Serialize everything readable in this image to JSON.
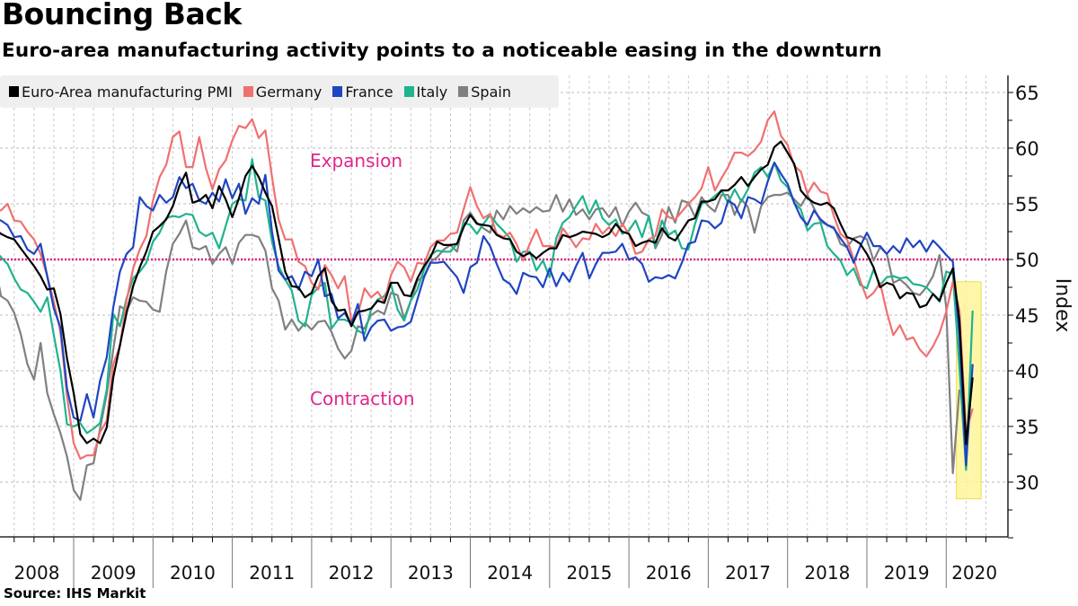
{
  "header": {
    "title": "Bouncing Back",
    "subtitle": "Euro-area manufacturing activity points to a noticeable easing in the downturn"
  },
  "footer": {
    "source": "Source: IHS Markit"
  },
  "chart_data": {
    "type": "line",
    "title": "Bouncing Back",
    "subtitle": "Euro-area manufacturing activity points to a noticeable easing in the downturn",
    "xlabel": "",
    "ylabel": "Index",
    "ylim": [
      25,
      66
    ],
    "yticks": [
      30,
      35,
      40,
      45,
      50,
      55,
      60,
      65
    ],
    "x_start": "2008-01",
    "x_end": "2020-05",
    "x_frequency": "monthly",
    "year_labels": [
      "2008",
      "2009",
      "2010",
      "2011",
      "2012",
      "2013",
      "2014",
      "2015",
      "2016",
      "2017",
      "2018",
      "2019",
      "2020"
    ],
    "grid": true,
    "legend_position": "top-left",
    "reference_line": {
      "value": 50,
      "color": "#e0278a",
      "style": "dotted"
    },
    "annotations": [
      {
        "text": "Expansion",
        "x": "2011-02",
        "y": 59,
        "color": "#e0278a"
      },
      {
        "text": "Contraction",
        "x": "2011-02",
        "y": 37.5,
        "color": "#e0278a"
      }
    ],
    "highlight": {
      "x_from": "2020-02",
      "x_to": "2020-06",
      "y_from": 28.5,
      "y_to": 48,
      "color": "#fff59a"
    },
    "series": [
      {
        "name": "Euro-Area manufacturing PMI",
        "color": "#000000",
        "values": [
          52.8,
          52.3,
          52.0,
          51.8,
          51.0,
          50.2,
          49.4,
          48.5,
          47.3,
          47.4,
          45.1,
          41.1,
          38.0,
          34.3,
          33.5,
          33.9,
          33.5,
          34.9,
          39.4,
          42.3,
          45.2,
          47.6,
          49.3,
          50.7,
          52.5,
          53.0,
          53.6,
          54.8,
          56.6,
          57.8,
          55.1,
          55.3,
          55.8,
          54.6,
          56.6,
          55.4,
          53.8,
          55.5,
          57.5,
          58.4,
          57.4,
          56.0,
          54.8,
          51.9,
          48.9,
          47.6,
          47.5,
          46.6,
          47.0,
          48.5,
          49.2,
          46.3,
          45.4,
          45.5,
          44.0,
          45.3,
          45.4,
          45.6,
          46.3,
          46.1,
          47.9,
          47.9,
          46.8,
          46.7,
          48.3,
          49.4,
          50.2,
          51.6,
          51.3,
          51.3,
          51.4,
          52.9,
          54.0,
          53.2,
          53.1,
          53.0,
          52.2,
          51.9,
          51.8,
          50.7,
          50.3,
          50.6,
          50.1,
          50.6,
          51.0,
          51.0,
          52.2,
          52.0,
          52.2,
          52.5,
          52.4,
          52.3,
          52.0,
          52.3,
          53.2,
          52.5,
          52.3,
          51.2,
          51.5,
          51.7,
          51.5,
          52.8,
          52.0,
          51.7,
          52.6,
          53.5,
          53.7,
          55.2,
          55.2,
          55.4,
          56.2,
          56.2,
          56.7,
          57.4,
          56.6,
          57.4,
          58.1,
          58.5,
          60.1,
          60.6,
          59.6,
          58.6,
          56.2,
          55.5,
          55.1,
          54.9,
          55.1,
          54.6,
          53.2,
          52.0,
          51.8,
          51.4,
          50.5,
          49.3,
          47.5,
          47.9,
          47.7,
          46.5,
          47.0,
          46.9,
          45.7,
          45.9,
          46.9,
          46.3,
          47.9,
          49.2,
          44.5,
          33.4,
          39.4
        ]
      },
      {
        "name": "Germany",
        "color": "#f07070",
        "values": [
          54.5,
          54.4,
          55.0,
          53.5,
          53.4,
          52.5,
          51.8,
          50.5,
          48.5,
          46.2,
          43.5,
          37.7,
          33.5,
          32.1,
          32.4,
          32.4,
          34.5,
          35.5,
          40.6,
          42.2,
          46.3,
          49.2,
          50.9,
          52.1,
          55.3,
          57.4,
          58.5,
          61.0,
          61.5,
          58.3,
          58.3,
          61.0,
          58.2,
          56.3,
          58.1,
          58.9,
          60.7,
          62.0,
          61.8,
          62.6,
          60.9,
          61.6,
          57.4,
          53.6,
          51.8,
          51.8,
          49.8,
          49.4,
          47.9,
          47.3,
          49.5,
          48.6,
          47.4,
          48.5,
          44.5,
          45.1,
          47.4,
          46.6,
          47.1,
          46.2,
          48.6,
          49.8,
          49.3,
          48.0,
          49.7,
          49.6,
          51.1,
          51.7,
          51.7,
          52.3,
          52.4,
          54.5,
          56.5,
          54.8,
          53.7,
          54.1,
          52.3,
          52.0,
          52.4,
          51.4,
          49.9,
          51.4,
          52.7,
          51.2,
          51.2,
          51.1,
          52.8,
          52.0,
          51.1,
          51.9,
          51.8,
          53.2,
          52.3,
          52.9,
          52.1,
          53.2,
          52.3,
          50.5,
          50.7,
          51.8,
          52.1,
          54.5,
          53.8,
          53.6,
          54.3,
          55.0,
          55.6,
          56.4,
          58.3,
          56.2,
          57.3,
          58.3,
          59.6,
          59.6,
          59.3,
          59.8,
          60.6,
          62.5,
          63.3,
          61.1,
          60.3,
          58.4,
          57.9,
          55.9,
          56.9,
          56.1,
          55.9,
          53.9,
          52.3,
          51.8,
          50.0,
          48.1,
          46.5,
          47.0,
          47.9,
          45.3,
          43.2,
          44.1,
          42.8,
          43.0,
          41.9,
          41.3,
          42.2,
          43.4,
          45.3,
          48.0,
          45.4,
          34.5,
          36.6
        ]
      },
      {
        "name": "France",
        "color": "#1f45c2",
        "values": [
          53.6,
          53.5,
          53.1,
          52.0,
          52.1,
          50.9,
          50.5,
          51.4,
          48.5,
          45.6,
          43.9,
          38.4,
          35.8,
          35.5,
          37.9,
          35.8,
          39.1,
          41.2,
          45.7,
          48.9,
          50.5,
          51.1,
          55.6,
          54.8,
          54.4,
          55.8,
          55.1,
          55.6,
          57.4,
          56.4,
          56.8,
          55.3,
          55.0,
          56.0,
          55.2,
          57.2,
          55.5,
          56.8,
          54.1,
          55.5,
          55.0,
          57.6,
          52.5,
          49.0,
          48.2,
          48.5,
          47.3,
          48.9,
          48.5,
          50.0,
          46.7,
          46.9,
          44.7,
          45.2,
          44.2,
          46.0,
          42.7,
          43.9,
          44.5,
          44.6,
          43.6,
          43.9,
          44.0,
          44.4,
          46.4,
          48.4,
          49.7,
          49.7,
          49.8,
          49.1,
          48.4,
          47.0,
          49.3,
          49.7,
          52.1,
          51.2,
          49.6,
          48.2,
          47.8,
          46.9,
          48.8,
          48.5,
          48.4,
          47.5,
          49.2,
          47.6,
          48.8,
          48.0,
          49.4,
          50.6,
          48.3,
          49.6,
          50.6,
          50.6,
          50.7,
          51.4,
          50.0,
          50.2,
          49.6,
          48.0,
          48.4,
          48.3,
          48.6,
          48.3,
          49.7,
          51.4,
          51.6,
          53.5,
          53.4,
          52.8,
          53.3,
          55.3,
          54.9,
          53.7,
          55.6,
          55.4,
          55.0,
          57.0,
          58.7,
          57.7,
          56.8,
          55.1,
          53.8,
          53.1,
          54.4,
          53.6,
          53.1,
          52.8,
          51.9,
          51.1,
          49.7,
          51.2,
          52.4,
          51.2,
          51.2,
          50.5,
          51.2,
          50.6,
          51.9,
          51.1,
          51.7,
          50.7,
          51.7,
          51.1,
          50.4,
          49.8,
          43.2,
          31.5,
          40.6
        ]
      },
      {
        "name": "Italy",
        "color": "#1fb38e",
        "values": [
          50.9,
          50.2,
          49.6,
          48.3,
          47.3,
          47.0,
          46.2,
          45.3,
          46.6,
          43.2,
          40.0,
          35.2,
          35.0,
          35.3,
          34.4,
          34.8,
          35.3,
          38.3,
          45.1,
          44.0,
          46.5,
          48.3,
          48.9,
          49.7,
          51.6,
          52.4,
          53.7,
          53.9,
          53.8,
          54.1,
          54.0,
          52.5,
          52.1,
          52.4,
          51.0,
          53.0,
          55.0,
          55.4,
          55.3,
          59.0,
          55.6,
          55.3,
          51.6,
          49.4,
          48.2,
          47.2,
          44.5,
          44.0,
          46.8,
          47.5,
          47.9,
          43.8,
          44.6,
          44.6,
          44.3,
          43.6,
          43.3,
          45.5,
          46.4,
          46.7,
          47.8,
          45.5,
          44.5,
          46.3,
          47.3,
          49.1,
          50.4,
          50.8,
          50.7,
          50.7,
          51.4,
          53.3,
          53.1,
          52.3,
          53.2,
          54.0,
          53.2,
          52.6,
          51.9,
          49.8,
          50.7,
          50.7,
          49.0,
          49.9,
          48.4,
          51.9,
          53.3,
          53.8,
          54.8,
          55.7,
          54.1,
          55.3,
          53.7,
          53.1,
          53.6,
          52.3,
          52.6,
          53.5,
          52.0,
          53.9,
          51.2,
          53.5,
          52.2,
          52.6,
          51.0,
          50.9,
          53.2,
          55.0,
          55.2,
          55.7,
          56.2,
          55.1,
          56.3,
          55.2,
          56.3,
          57.8,
          58.3,
          57.4,
          58.7,
          57.1,
          56.5,
          55.1,
          54.5,
          52.6,
          53.2,
          53.3,
          51.2,
          50.5,
          49.9,
          48.6,
          49.2,
          47.7,
          47.4,
          49.1,
          47.7,
          48.4,
          48.5,
          48.3,
          48.4,
          47.8,
          47.7,
          47.5,
          46.9,
          46.2,
          48.9,
          48.7,
          40.3,
          31.1,
          45.4
        ]
      },
      {
        "name": "Spain",
        "color": "#808080",
        "values": [
          49.9,
          46.7,
          46.3,
          45.2,
          43.3,
          40.6,
          39.2,
          42.5,
          38.0,
          36.1,
          34.4,
          32.3,
          29.3,
          28.4,
          31.5,
          31.7,
          34.8,
          37.9,
          41.9,
          45.8,
          45.4,
          46.6,
          46.3,
          46.2,
          45.5,
          45.3,
          48.9,
          51.4,
          52.3,
          53.5,
          51.1,
          50.9,
          51.2,
          49.6,
          50.5,
          51.1,
          49.6,
          51.5,
          52.2,
          52.2,
          52.0,
          50.8,
          47.4,
          46.3,
          43.7,
          44.6,
          43.6,
          44.3,
          43.7,
          44.4,
          44.5,
          43.5,
          42.0,
          41.1,
          41.8,
          44.0,
          43.8,
          45.0,
          45.4,
          45.1,
          47.0,
          46.8,
          44.7,
          46.3,
          48.1,
          48.5,
          49.8,
          50.2,
          50.9,
          51.3,
          50.7,
          53.5,
          54.2,
          53.3,
          52.8,
          52.4,
          54.4,
          53.6,
          54.8,
          54.1,
          54.6,
          54.2,
          54.7,
          54.3,
          54.4,
          55.8,
          54.3,
          55.4,
          54.0,
          54.5,
          53.6,
          54.5,
          54.6,
          53.8,
          54.7,
          53.0,
          54.3,
          55.1,
          54.2,
          53.9,
          51.0,
          52.2,
          54.7,
          53.3,
          55.3,
          55.1,
          53.8,
          55.6,
          54.8,
          54.3,
          55.8,
          55.8,
          54.0,
          55.4,
          54.7,
          52.4,
          54.8,
          55.6,
          55.8,
          55.8,
          56.0,
          55.4,
          54.8,
          55.8,
          54.6,
          53.4,
          53.1,
          52.9,
          51.4,
          51.1,
          51.9,
          52.1,
          51.8,
          49.9,
          51.1,
          50.5,
          47.9,
          48.2,
          47.7,
          47.0,
          46.8,
          47.5,
          48.5,
          50.4,
          45.7,
          30.8,
          38.3
        ]
      }
    ]
  }
}
